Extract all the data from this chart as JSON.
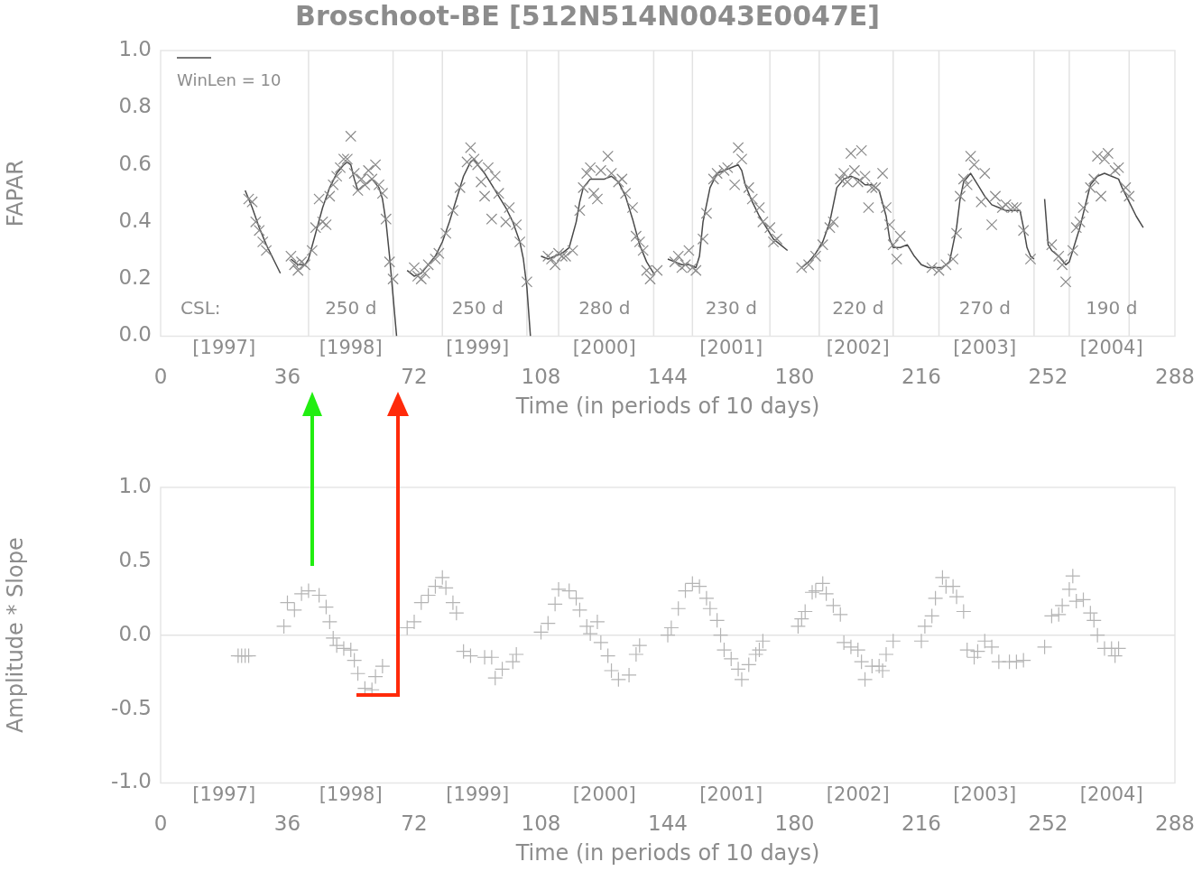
{
  "chart_data": [
    {
      "type": "scatter",
      "title": "Broschoot-BE [512N514N0043E0047E]",
      "xlabel": "Time (in periods of 10 days)",
      "ylabel": "FAPAR",
      "xlim": [
        0,
        288
      ],
      "xticks": [
        0,
        36,
        72,
        108,
        144,
        180,
        216,
        252,
        288
      ],
      "x2lim": [
        1996.5,
        2004.5
      ],
      "x2ticks": [
        {
          "value": 1997,
          "label": "[1997]"
        },
        {
          "value": 1998,
          "label": "[1998]"
        },
        {
          "value": 1999,
          "label": "[1999]"
        },
        {
          "value": 2000,
          "label": "[2000]"
        },
        {
          "value": 2001,
          "label": "[2001]"
        },
        {
          "value": 2002,
          "label": "[2002]"
        },
        {
          "value": 2003,
          "label": "[2003]"
        },
        {
          "value": 2004,
          "label": "[2004]"
        }
      ],
      "ylim": [
        0,
        1
      ],
      "yticks": [
        {
          "value": 0,
          "label": "0.0"
        },
        {
          "value": 0.2,
          "label": "0.2"
        },
        {
          "value": 0.4,
          "label": "0.4"
        },
        {
          "value": 0.6,
          "label": "0.6"
        },
        {
          "value": 0.8,
          "label": "0.8"
        },
        {
          "value": 1,
          "label": "1.0"
        }
      ],
      "grid": false,
      "legend": "top left",
      "series": [
        {
          "type": "scatter",
          "marker": "cross",
          "color": "#8a8a8a",
          "x": [
            25,
            26,
            27,
            28,
            29,
            30,
            37,
            38,
            39,
            40,
            41,
            43,
            44,
            45,
            46,
            47,
            48,
            49,
            50,
            51,
            52,
            53,
            54,
            55,
            56,
            57,
            58,
            59,
            60,
            61,
            62,
            63,
            64,
            65,
            66,
            72,
            73,
            74,
            75,
            76,
            78,
            79,
            81,
            83,
            85,
            87,
            88,
            89,
            90,
            91,
            92,
            93,
            94,
            95,
            96,
            98,
            99,
            101,
            102,
            104,
            110,
            111,
            112,
            113,
            114,
            115,
            117,
            119,
            120,
            121,
            122,
            123,
            124,
            125,
            127,
            128,
            130,
            131,
            132,
            134,
            135,
            136,
            137,
            138,
            139,
            141,
            146,
            147,
            148,
            149,
            150,
            151,
            152,
            154,
            155,
            157,
            158,
            160,
            161,
            163,
            164,
            165,
            167,
            168,
            170,
            171,
            173,
            174,
            175,
            182,
            184,
            186,
            188,
            190,
            191,
            193,
            194,
            195,
            196,
            197,
            198,
            199,
            200,
            201,
            202,
            203,
            205,
            206,
            207,
            208,
            209,
            210,
            219,
            221,
            223,
            225,
            226,
            227,
            228,
            229,
            230,
            231,
            233,
            234,
            236,
            237,
            239,
            240,
            242,
            243,
            245,
            247,
            253,
            255,
            256,
            257,
            259,
            260,
            261,
            262,
            264,
            265,
            266,
            267,
            268,
            269,
            271,
            272,
            274,
            275
          ],
          "values": [
            0.48,
            0.47,
            0.4,
            0.37,
            0.33,
            0.3,
            0.28,
            0.25,
            0.23,
            0.26,
            0.25,
            0.3,
            0.38,
            0.48,
            0.4,
            0.39,
            0.49,
            0.53,
            0.56,
            0.59,
            0.62,
            0.62,
            0.7,
            0.57,
            0.51,
            0.55,
            0.53,
            0.58,
            0.55,
            0.6,
            0.53,
            0.5,
            0.41,
            0.26,
            0.2,
            0.24,
            0.21,
            0.2,
            0.22,
            0.25,
            0.27,
            0.29,
            0.36,
            0.44,
            0.52,
            0.61,
            0.66,
            0.62,
            0.6,
            0.54,
            0.49,
            0.59,
            0.41,
            0.56,
            0.5,
            0.4,
            0.45,
            0.39,
            0.33,
            0.19,
            0.28,
            0.27,
            0.25,
            0.29,
            0.28,
            0.28,
            0.3,
            0.44,
            0.52,
            0.57,
            0.59,
            0.5,
            0.48,
            0.58,
            0.63,
            0.57,
            0.54,
            0.55,
            0.5,
            0.45,
            0.35,
            0.33,
            0.3,
            0.23,
            0.2,
            0.23,
            0.26,
            0.28,
            0.24,
            0.25,
            0.3,
            0.24,
            0.23,
            0.34,
            0.43,
            0.55,
            0.57,
            0.58,
            0.59,
            0.53,
            0.66,
            0.62,
            0.52,
            0.48,
            0.45,
            0.4,
            0.38,
            0.33,
            0.34,
            0.24,
            0.25,
            0.28,
            0.32,
            0.38,
            0.4,
            0.55,
            0.57,
            0.54,
            0.64,
            0.58,
            0.54,
            0.65,
            0.56,
            0.45,
            0.52,
            0.52,
            0.57,
            0.45,
            0.39,
            0.32,
            0.27,
            0.35,
            0.24,
            0.23,
            0.25,
            0.27,
            0.36,
            0.49,
            0.55,
            0.53,
            0.63,
            0.6,
            0.47,
            0.57,
            0.39,
            0.49,
            0.45,
            0.46,
            0.45,
            0.45,
            0.37,
            0.27,
            0.32,
            0.28,
            0.25,
            0.19,
            0.3,
            0.38,
            0.4,
            0.45,
            0.52,
            0.55,
            0.63,
            0.49,
            0.62,
            0.64,
            0.58,
            0.59,
            0.52,
            0.49
          ]
        },
        {
          "type": "line",
          "marker": "none",
          "name": "WinLen = 10",
          "color": "#4a4a4a",
          "x": [
            24,
            26,
            28,
            30,
            32,
            34,
            36,
            37,
            39,
            41,
            42,
            44,
            46,
            48,
            50,
            52,
            53,
            54,
            55,
            56,
            58,
            60,
            62,
            63,
            64,
            65,
            66,
            67,
            68,
            70,
            72,
            74,
            76,
            78,
            80,
            82,
            84,
            86,
            88,
            89,
            90,
            92,
            94,
            96,
            98,
            100,
            102,
            103,
            104,
            105,
            107,
            108,
            110,
            112,
            114,
            116,
            118,
            119,
            120,
            122,
            124,
            126,
            128,
            130,
            132,
            134,
            136,
            138,
            140,
            142,
            144,
            146,
            148,
            150,
            152,
            153,
            154,
            156,
            158,
            160,
            162,
            164,
            165,
            166,
            168,
            170,
            172,
            174,
            176,
            178,
            180,
            182,
            184,
            186,
            188,
            190,
            191,
            192,
            194,
            196,
            198,
            200,
            202,
            204,
            206,
            207,
            208,
            210,
            212,
            214,
            216,
            218,
            220,
            222,
            224,
            226,
            227,
            228,
            230,
            232,
            234,
            236,
            238,
            240,
            242,
            244,
            245,
            246,
            247,
            248,
            250,
            251,
            252,
            253,
            255,
            257,
            258,
            259,
            261,
            263,
            264,
            266,
            268,
            270,
            272,
            273,
            275,
            277,
            279
          ],
          "values": [
            0.51,
            0.45,
            0.38,
            0.32,
            0.27,
            0.22,
            null,
            0.27,
            0.25,
            0.25,
            0.27,
            0.36,
            0.45,
            0.52,
            0.57,
            0.6,
            0.61,
            0.6,
            0.55,
            0.51,
            0.53,
            0.55,
            0.52,
            0.48,
            0.4,
            0.28,
            0.14,
            0.0,
            null,
            0.23,
            0.21,
            0.22,
            0.25,
            0.28,
            0.33,
            0.4,
            0.48,
            0.56,
            0.61,
            0.62,
            0.6,
            0.57,
            0.53,
            0.49,
            0.45,
            0.4,
            0.33,
            0.27,
            0.17,
            0.0,
            null,
            0.28,
            0.27,
            0.28,
            0.29,
            0.31,
            0.4,
            0.47,
            0.52,
            0.55,
            0.55,
            0.55,
            0.56,
            0.54,
            0.49,
            0.41,
            0.32,
            0.26,
            0.22,
            null,
            0.27,
            0.26,
            0.25,
            0.25,
            0.24,
            0.28,
            0.4,
            0.52,
            0.57,
            0.58,
            0.59,
            0.6,
            0.58,
            0.53,
            0.47,
            0.42,
            0.38,
            0.34,
            0.32,
            0.3,
            null,
            0.24,
            0.26,
            0.29,
            0.33,
            0.4,
            0.46,
            0.52,
            0.55,
            0.56,
            0.55,
            0.53,
            0.53,
            0.51,
            0.42,
            0.34,
            0.31,
            0.31,
            0.32,
            0.28,
            0.25,
            0.24,
            0.24,
            0.24,
            0.26,
            0.38,
            0.48,
            0.54,
            0.57,
            0.53,
            0.49,
            0.46,
            0.45,
            0.44,
            0.44,
            0.44,
            0.38,
            0.31,
            0.28,
            0.27,
            null,
            0.48,
            0.32,
            0.3,
            0.28,
            0.25,
            0.26,
            0.3,
            0.38,
            0.48,
            0.53,
            0.56,
            0.57,
            0.56,
            0.55,
            0.52,
            0.47,
            0.42,
            0.38
          ]
        }
      ],
      "ref_lines": [
        {
          "axis": "x",
          "value": 42
        },
        {
          "axis": "x",
          "value": 66
        },
        {
          "axis": "x",
          "value": 80
        },
        {
          "axis": "x",
          "value": 104
        },
        {
          "axis": "x",
          "value": 113
        },
        {
          "axis": "x",
          "value": 140
        },
        {
          "axis": "x",
          "value": 151
        },
        {
          "axis": "x",
          "value": 173
        },
        {
          "axis": "x",
          "value": 187
        },
        {
          "axis": "x",
          "value": 208
        },
        {
          "axis": "x",
          "value": 221
        },
        {
          "axis": "x",
          "value": 248
        },
        {
          "axis": "x",
          "value": 258
        },
        {
          "axis": "x",
          "value": 275
        }
      ],
      "annotations": [
        "CSL:",
        "250 d",
        "250 d",
        "280 d",
        "230 d",
        "220 d",
        "270 d",
        "190 d"
      ]
    },
    {
      "type": "scatter",
      "xlabel": "Time (in periods of 10 days)",
      "ylabel": "Amplitude * Slope",
      "xlim": [
        0,
        288
      ],
      "xticks": [
        0,
        36,
        72,
        108,
        144,
        180,
        216,
        252,
        288
      ],
      "x2lim": [
        1996.5,
        2004.5
      ],
      "x2ticks": [
        {
          "value": 1997,
          "label": "[1997]"
        },
        {
          "value": 1998,
          "label": "[1998]"
        },
        {
          "value": 1999,
          "label": "[1999]"
        },
        {
          "value": 2000,
          "label": "[2000]"
        },
        {
          "value": 2001,
          "label": "[2001]"
        },
        {
          "value": 2002,
          "label": "[2002]"
        },
        {
          "value": 2003,
          "label": "[2003]"
        },
        {
          "value": 2004,
          "label": "[2004]"
        }
      ],
      "ylim": [
        -1,
        1
      ],
      "yticks": [
        {
          "value": -1,
          "label": "-1.0"
        },
        {
          "value": -0.5,
          "label": "-0.5"
        },
        {
          "value": 0,
          "label": "0.0"
        },
        {
          "value": 0.5,
          "label": "0.5"
        },
        {
          "value": 1,
          "label": "1.0"
        }
      ],
      "grid": false,
      "series": [
        {
          "type": "scatter",
          "marker": "cross",
          "color": "#b4b4b4",
          "x": [
            22,
            23,
            24,
            25,
            35,
            36,
            38,
            40,
            42,
            45,
            47,
            48,
            49,
            50,
            52,
            54,
            55,
            56,
            58,
            60,
            61,
            63,
            70,
            72,
            74,
            76,
            78,
            80,
            81,
            83,
            84,
            86,
            88,
            92,
            94,
            95,
            97,
            100,
            101,
            108,
            110,
            112,
            113,
            116,
            118,
            119,
            121,
            122,
            124,
            125,
            127,
            128,
            130,
            133,
            135,
            136,
            144,
            145,
            147,
            149,
            151,
            153,
            155,
            156,
            158,
            159,
            160,
            162,
            164,
            165,
            167,
            169,
            170,
            171,
            181,
            182,
            183,
            185,
            186,
            188,
            189,
            191,
            193,
            194,
            196,
            198,
            199,
            200,
            202,
            204,
            205,
            206,
            208,
            216,
            217,
            219,
            220,
            222,
            223,
            225,
            226,
            228,
            229,
            231,
            232,
            234,
            236,
            238,
            241,
            243,
            245,
            251,
            253,
            255,
            256,
            258,
            259,
            260,
            262,
            264,
            265,
            266,
            268,
            270,
            271,
            272
          ],
          "values": [
            -0.14,
            -0.14,
            -0.14,
            -0.14,
            0.06,
            0.22,
            0.17,
            0.28,
            0.3,
            0.27,
            0.19,
            0.09,
            -0.02,
            -0.07,
            -0.09,
            -0.1,
            -0.17,
            -0.26,
            -0.36,
            -0.37,
            -0.28,
            -0.21,
            0.05,
            0.09,
            0.22,
            0.27,
            0.33,
            0.39,
            0.32,
            0.22,
            0.15,
            -0.11,
            -0.14,
            -0.15,
            -0.15,
            -0.29,
            -0.23,
            -0.18,
            -0.13,
            0.02,
            0.08,
            0.21,
            0.31,
            0.3,
            0.25,
            0.17,
            0.06,
            0.01,
            0.09,
            -0.05,
            -0.14,
            -0.24,
            -0.3,
            -0.27,
            -0.13,
            -0.07,
            0.0,
            0.05,
            0.18,
            0.3,
            0.35,
            0.33,
            0.25,
            0.18,
            0.1,
            0.0,
            -0.1,
            -0.16,
            -0.23,
            -0.3,
            -0.2,
            -0.13,
            -0.1,
            -0.04,
            0.06,
            0.11,
            0.16,
            0.29,
            0.3,
            0.35,
            0.28,
            0.2,
            0.14,
            -0.05,
            -0.08,
            -0.1,
            -0.18,
            -0.3,
            -0.21,
            -0.21,
            -0.24,
            -0.13,
            -0.04,
            -0.04,
            0.06,
            0.13,
            0.25,
            0.39,
            0.33,
            0.33,
            0.26,
            0.16,
            -0.1,
            -0.15,
            -0.11,
            -0.04,
            -0.08,
            -0.18,
            -0.18,
            -0.18,
            -0.17,
            -0.08,
            0.13,
            0.14,
            0.2,
            0.31,
            0.4,
            0.23,
            0.24,
            0.15,
            0.1,
            0.0,
            -0.09,
            -0.09,
            -0.14,
            -0.09
          ]
        }
      ],
      "ref_lines": [
        {
          "axis": "y",
          "value": 0
        }
      ]
    }
  ]
}
